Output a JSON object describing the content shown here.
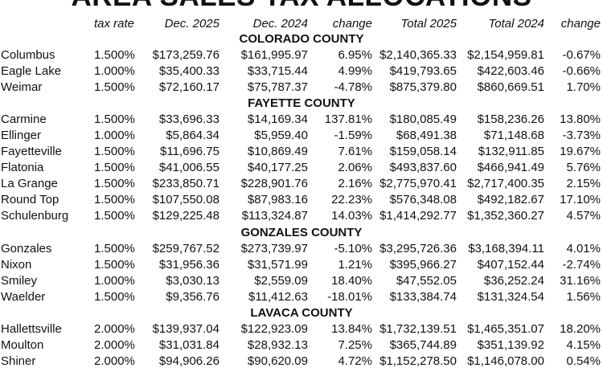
{
  "title": "AREA SALES TAX ALLOCATIONS",
  "columns": {
    "tax_rate": "tax rate",
    "dec_2025": "Dec. 2025",
    "dec_2024": "Dec. 2024",
    "change": "change",
    "total_2025": "Total 2025",
    "total_2024": "Total 2024",
    "change_total": "change"
  },
  "counties": [
    {
      "name": "COLORADO COUNTY",
      "rows": [
        {
          "city": "Columbus",
          "rate": "1.500%",
          "dec2025": "$173,259.76",
          "dec2024": "$161,995.97",
          "change": "6.95%",
          "total2025": "$2,140,365.33",
          "total2024": "$2,154,959.81",
          "change_total": "-0.67%"
        },
        {
          "city": "Eagle Lake",
          "rate": "1.000%",
          "dec2025": "$35,400.33",
          "dec2024": "$33,715.44",
          "change": "4.99%",
          "total2025": "$419,793.65",
          "total2024": "$422,603.46",
          "change_total": "-0.66%"
        },
        {
          "city": "Weimar",
          "rate": "1.500%",
          "dec2025": "$72,160.17",
          "dec2024": "$75,787.37",
          "change": "-4.78%",
          "total2025": "$875,379.80",
          "total2024": "$860,669.51",
          "change_total": "1.70%"
        }
      ]
    },
    {
      "name": "FAYETTE COUNTY",
      "rows": [
        {
          "city": "Carmine",
          "rate": "1.500%",
          "dec2025": "$33,696.33",
          "dec2024": "$14,169.34",
          "change": "137.81%",
          "total2025": "$180,085.49",
          "total2024": "$158,236.26",
          "change_total": "13.80%"
        },
        {
          "city": "Ellinger",
          "rate": "1.000%",
          "dec2025": "$5,864.34",
          "dec2024": "$5,959.40",
          "change": "-1.59%",
          "total2025": "$68,491.38",
          "total2024": "$71,148.68",
          "change_total": "-3.73%"
        },
        {
          "city": "Fayetteville",
          "rate": "1.500%",
          "dec2025": "$11,696.75",
          "dec2024": "$10,869.49",
          "change": "7.61%",
          "total2025": "$159,058.14",
          "total2024": "$132,911.85",
          "change_total": "19.67%"
        },
        {
          "city": "Flatonia",
          "rate": "1.500%",
          "dec2025": "$41,006.55",
          "dec2024": "$40,177.25",
          "change": "2.06%",
          "total2025": "$493,837.60",
          "total2024": "$466,941.49",
          "change_total": "5.76%"
        },
        {
          "city": "La Grange",
          "rate": "1.500%",
          "dec2025": "$233,850.71",
          "dec2024": "$228,901.76",
          "change": "2.16%",
          "total2025": "$2,775,970.41",
          "total2024": "$2,717,400.35",
          "change_total": "2.15%"
        },
        {
          "city": "Round Top",
          "rate": "1.500%",
          "dec2025": "$107,550.08",
          "dec2024": "$87,983.16",
          "change": "22.23%",
          "total2025": "$576,348.08",
          "total2024": "$492,182.67",
          "change_total": "17.10%"
        },
        {
          "city": "Schulenburg",
          "rate": "1.500%",
          "dec2025": "$129,225.48",
          "dec2024": "$113,324.87",
          "change": "14.03%",
          "total2025": "$1,414,292.77",
          "total2024": "$1,352,360.27",
          "change_total": "4.57%"
        }
      ]
    },
    {
      "name": "GONZALES COUNTY",
      "rows": [
        {
          "city": "Gonzales",
          "rate": "1.500%",
          "dec2025": "$259,767.52",
          "dec2024": "$273,739.97",
          "change": "-5.10%",
          "total2025": "$3,295,726.36",
          "total2024": "$3,168,394.11",
          "change_total": "4.01%"
        },
        {
          "city": "Nixon",
          "rate": "1.500%",
          "dec2025": "$31,956.36",
          "dec2024": "$31,571.99",
          "change": "1.21%",
          "total2025": "$395,966.27",
          "total2024": "$407,152.44",
          "change_total": "-2.74%"
        },
        {
          "city": "Smiley",
          "rate": "1.000%",
          "dec2025": "$3,030.13",
          "dec2024": "$2,559.09",
          "change": "18.40%",
          "total2025": "$47,552.05",
          "total2024": "$36,252.24",
          "change_total": "31.16%"
        },
        {
          "city": "Waelder",
          "rate": "1.500%",
          "dec2025": "$9,356.76",
          "dec2024": "$11,412.63",
          "change": "-18.01%",
          "total2025": "$133,384.74",
          "total2024": "$131,324.54",
          "change_total": "1.56%"
        }
      ]
    },
    {
      "name": "LAVACA COUNTY",
      "rows": [
        {
          "city": "Hallettsville",
          "rate": "2.000%",
          "dec2025": "$139,937.04",
          "dec2024": "$122,923.09",
          "change": "13.84%",
          "total2025": "$1,732,139.51",
          "total2024": "$1,465,351.07",
          "change_total": "18.20%"
        },
        {
          "city": "Moulton",
          "rate": "2.000%",
          "dec2025": "$31,031.84",
          "dec2024": "$28,932.13",
          "change": "7.25%",
          "total2025": "$365,744.89",
          "total2024": "$351,139.92",
          "change_total": "4.15%"
        },
        {
          "city": "Shiner",
          "rate": "2.000%",
          "dec2025": "$94,906.26",
          "dec2024": "$90,620.09",
          "change": "4.72%",
          "total2025": "$1,152,278.50",
          "total2024": "$1,146,078.00",
          "change_total": "0.54%"
        }
      ]
    }
  ]
}
